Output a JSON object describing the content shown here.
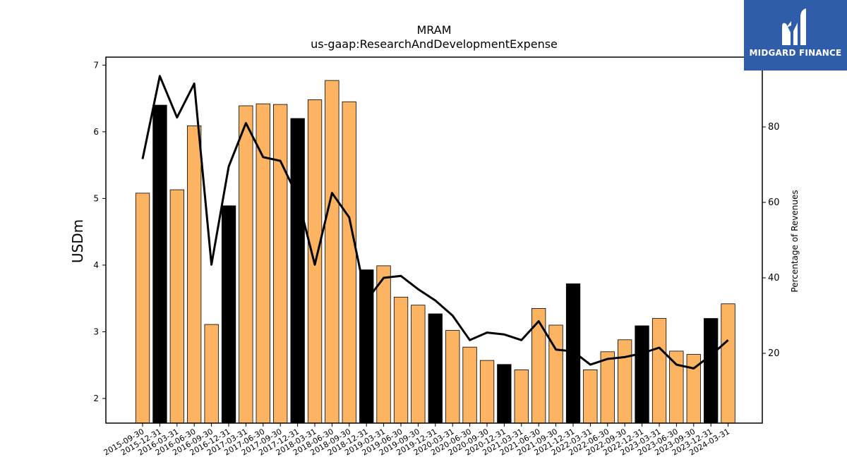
{
  "brand": {
    "name": "MIDGARD FINANCE",
    "bg_color": "#2f5daa"
  },
  "chart_data": {
    "type": "bar",
    "title": "MRAM",
    "subtitle": "us-gaap:ResearchAndDevelopmentExpense",
    "ylabel": "USDm",
    "y2label": "Percentage of Revenues",
    "ylim": [
      1.63,
      7.12
    ],
    "y2lim": [
      1.5,
      98.5
    ],
    "yticks": [
      2,
      3,
      4,
      5,
      6,
      7
    ],
    "y2ticks": [
      20,
      40,
      60,
      80
    ],
    "colors": {
      "quarter": "#fdb462",
      "year_end": "#000000",
      "line": "#000000"
    },
    "categories": [
      "2015-09-30",
      "2015-12-31",
      "2016-03-31",
      "2016-06-30",
      "2016-09-30",
      "2016-12-31",
      "2017-03-31",
      "2017-06-30",
      "2017-09-30",
      "2017-12-31",
      "2018-03-31",
      "2018-06-30",
      "2018-09-30",
      "2018-12-31",
      "2019-03-31",
      "2019-06-30",
      "2019-09-30",
      "2019-12-31",
      "2020-03-31",
      "2020-06-30",
      "2020-09-30",
      "2020-12-31",
      "2021-03-31",
      "2021-06-30",
      "2021-09-30",
      "2021-12-31",
      "2022-03-31",
      "2022-06-30",
      "2022-09-30",
      "2022-12-31",
      "2023-03-31",
      "2023-06-30",
      "2023-09-30",
      "2023-12-31",
      "2024-03-31"
    ],
    "series": [
      {
        "type": "bar",
        "values": [
          5.08,
          6.4,
          5.13,
          6.09,
          3.11,
          4.89,
          6.39,
          6.42,
          6.41,
          6.2,
          6.48,
          6.77,
          6.45,
          3.93,
          3.99,
          3.52,
          3.4,
          3.27,
          3.02,
          2.77,
          2.57,
          2.51,
          2.43,
          3.35,
          3.1,
          3.72,
          2.43,
          2.7,
          2.88,
          3.09,
          3.2,
          2.71,
          2.66,
          3.2,
          3.42
        ],
        "highlight": [
          false,
          true,
          false,
          false,
          false,
          true,
          false,
          false,
          false,
          true,
          false,
          false,
          false,
          true,
          false,
          false,
          false,
          true,
          false,
          false,
          false,
          true,
          false,
          false,
          false,
          true,
          false,
          false,
          false,
          true,
          false,
          false,
          false,
          true,
          false
        ]
      },
      {
        "type": "line",
        "axis": "right",
        "values": [
          71.5,
          93.5,
          82.5,
          91.5,
          43.5,
          69.5,
          81.0,
          72.0,
          71.0,
          61.5,
          43.5,
          62.5,
          56.0,
          34.0,
          40.0,
          40.5,
          37.0,
          34.0,
          30.0,
          23.5,
          25.5,
          25.0,
          23.5,
          28.5,
          21.0,
          20.5,
          17.0,
          18.5,
          19.0,
          20.0,
          21.5,
          17.0,
          16.0,
          19.5,
          23.5
        ]
      }
    ]
  }
}
